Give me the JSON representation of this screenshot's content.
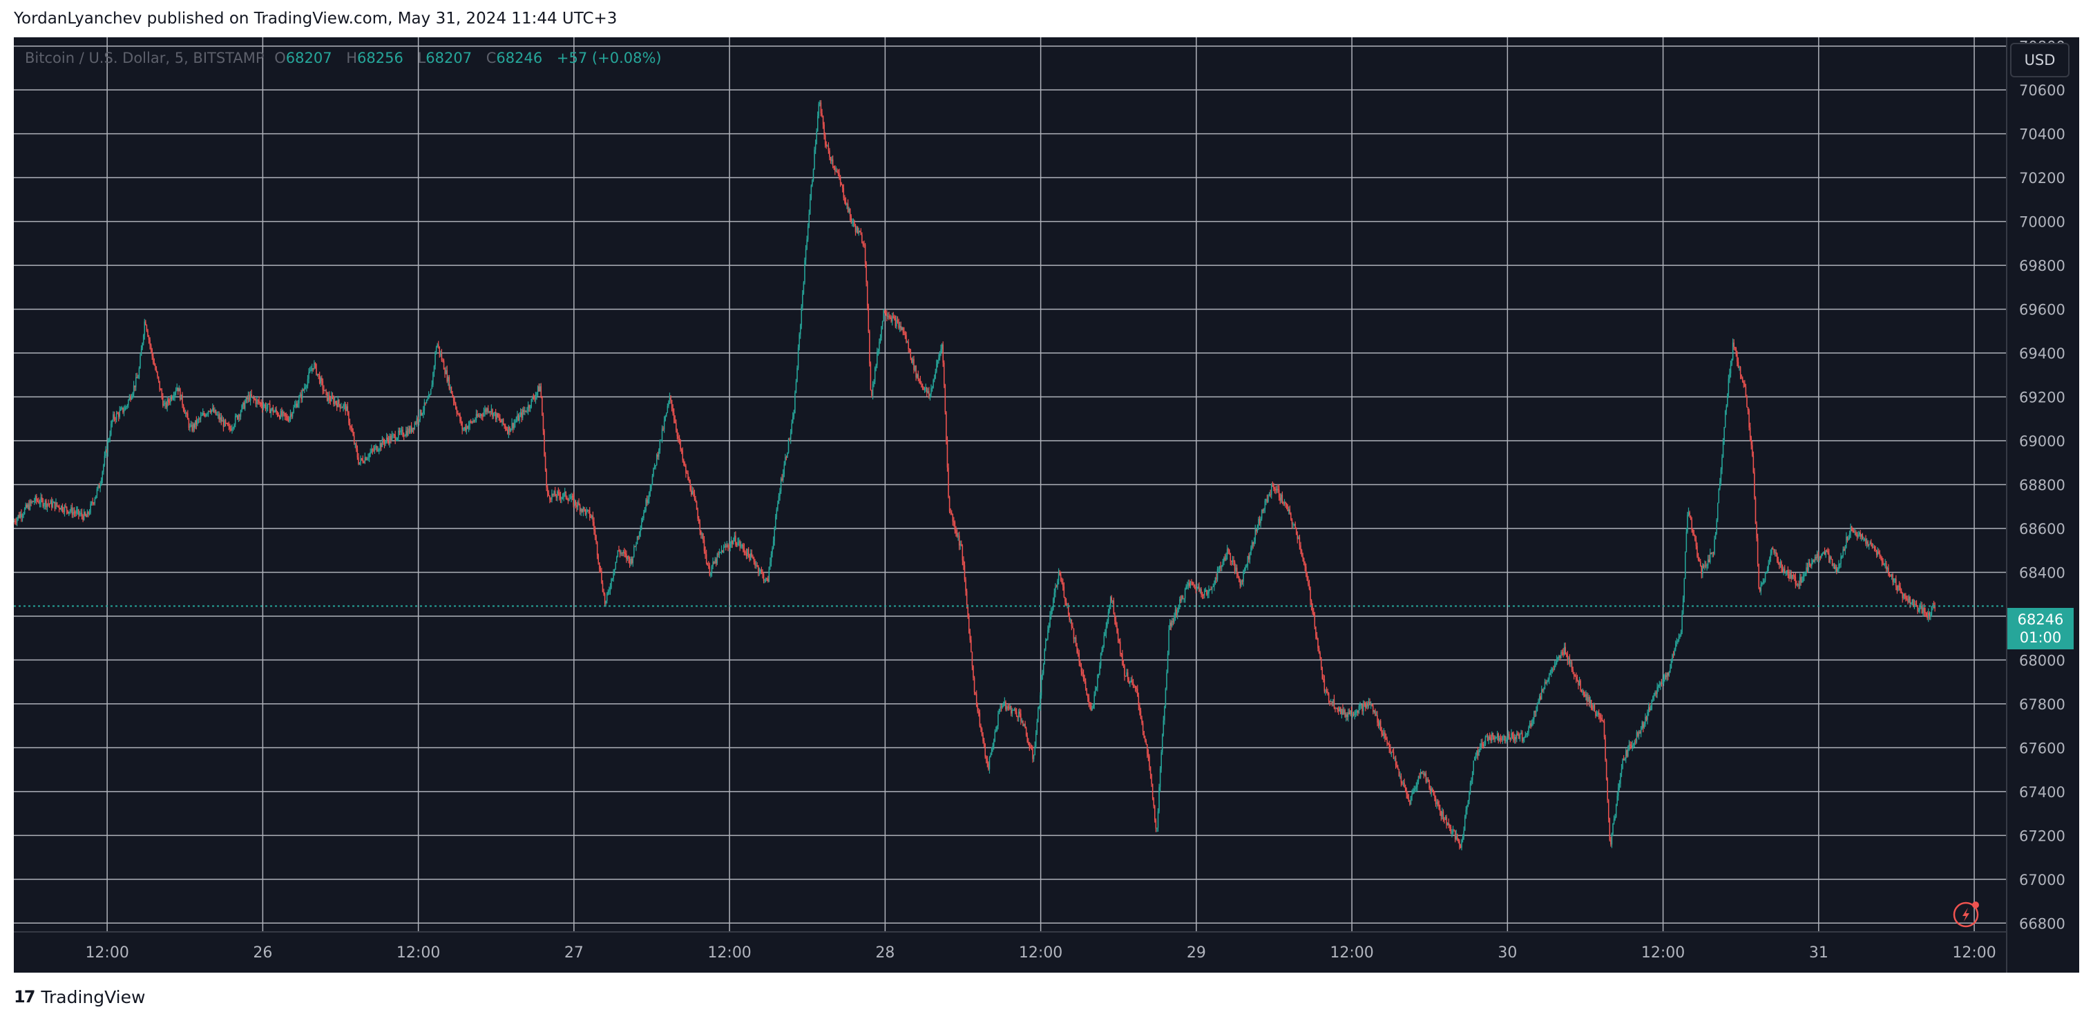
{
  "header": {
    "publisher": "YordanLyanchev published on TradingView.com, May 31, 2024 11:44 UTC+3"
  },
  "legend": {
    "symbol": "Bitcoin / U.S. Dollar, 5, BITSTAMP",
    "open_label": "O",
    "open": "68207",
    "high_label": "H",
    "high": "68256",
    "low_label": "L",
    "low": "68207",
    "close_label": "C",
    "close": "68246",
    "change": "+57 (+0.08%)"
  },
  "currency_button": "USD",
  "price_tag": {
    "price": "68246",
    "countdown": "01:00"
  },
  "footer": {
    "brand": "TradingView",
    "logo_mark": "17"
  },
  "colors": {
    "up": "#26a69a",
    "down": "#ef5350",
    "background": "#131722",
    "grid": "#b0b3bb"
  },
  "chart_data": {
    "type": "candlestick",
    "series_name": "",
    "interval": "5",
    "current_price": 68246,
    "ylim": [
      66760,
      70840
    ],
    "y_ticks": [
      66800,
      67000,
      67200,
      67400,
      67600,
      67800,
      68000,
      68200,
      68400,
      68600,
      68800,
      69000,
      69200,
      69400,
      69600,
      69800,
      70000,
      70200,
      70400,
      70600,
      70800
    ],
    "y_tick_labels": [
      "66800",
      "67000",
      "67200",
      "67400",
      "67600",
      "67800",
      "68000",
      "68200",
      "68400",
      "68600",
      "68800",
      "69000",
      "69200",
      "69400",
      "69600",
      "69800",
      "70000",
      "70200",
      "70400",
      "70600",
      "70800"
    ],
    "x_ticks": [
      "12:00",
      "26",
      "12:00",
      "27",
      "12:00",
      "28",
      "12:00",
      "29",
      "12:00",
      "30",
      "12:00",
      "31",
      "12:00"
    ],
    "x_tick_hours": [
      12,
      24,
      36,
      48,
      60,
      72,
      84,
      96,
      108,
      120,
      132,
      144,
      156
    ],
    "xlim_hours": [
      4.8,
      158.5
    ],
    "grid": true,
    "price_path": [
      [
        4.8,
        68630
      ],
      [
        6.5,
        68730
      ],
      [
        8.5,
        68700
      ],
      [
        10.5,
        68650
      ],
      [
        11.5,
        68800
      ],
      [
        12.5,
        69100
      ],
      [
        13.5,
        69150
      ],
      [
        14.5,
        69300
      ],
      [
        15.0,
        69560
      ],
      [
        15.5,
        69400
      ],
      [
        16.5,
        69150
      ],
      [
        17.5,
        69250
      ],
      [
        18.5,
        69050
      ],
      [
        20.0,
        69150
      ],
      [
        21.5,
        69050
      ],
      [
        23.0,
        69200
      ],
      [
        24.5,
        69150
      ],
      [
        26.0,
        69100
      ],
      [
        27.0,
        69200
      ],
      [
        28.0,
        69350
      ],
      [
        29.0,
        69200
      ],
      [
        30.5,
        69150
      ],
      [
        31.5,
        68900
      ],
      [
        33.5,
        69000
      ],
      [
        35.5,
        69050
      ],
      [
        37.0,
        69200
      ],
      [
        37.5,
        69450
      ],
      [
        38.5,
        69250
      ],
      [
        39.5,
        69050
      ],
      [
        41.5,
        69150
      ],
      [
        43.0,
        69050
      ],
      [
        44.5,
        69150
      ],
      [
        45.5,
        69250
      ],
      [
        46.0,
        68750
      ],
      [
        47.5,
        68750
      ],
      [
        49.5,
        68650
      ],
      [
        50.5,
        68250
      ],
      [
        51.5,
        68500
      ],
      [
        52.5,
        68450
      ],
      [
        54.0,
        68800
      ],
      [
        55.5,
        69200
      ],
      [
        56.5,
        68900
      ],
      [
        57.5,
        68700
      ],
      [
        58.5,
        68400
      ],
      [
        59.5,
        68500
      ],
      [
        60.5,
        68550
      ],
      [
        62.0,
        68450
      ],
      [
        63.0,
        68350
      ],
      [
        64.0,
        68800
      ],
      [
        65.0,
        69100
      ],
      [
        66.0,
        69900
      ],
      [
        67.0,
        70550
      ],
      [
        67.5,
        70350
      ],
      [
        68.5,
        70200
      ],
      [
        69.5,
        70000
      ],
      [
        70.5,
        69900
      ],
      [
        71.0,
        69200
      ],
      [
        72.0,
        69600
      ],
      [
        73.5,
        69500
      ],
      [
        74.5,
        69300
      ],
      [
        75.5,
        69200
      ],
      [
        76.5,
        69450
      ],
      [
        77.0,
        68700
      ],
      [
        78.0,
        68500
      ],
      [
        79.0,
        67850
      ],
      [
        80.0,
        67500
      ],
      [
        81.0,
        67800
      ],
      [
        82.5,
        67750
      ],
      [
        83.5,
        67550
      ],
      [
        84.5,
        68100
      ],
      [
        85.5,
        68400
      ],
      [
        86.5,
        68150
      ],
      [
        88.0,
        67750
      ],
      [
        89.5,
        68300
      ],
      [
        90.5,
        67950
      ],
      [
        91.5,
        67850
      ],
      [
        92.5,
        67500
      ],
      [
        93.0,
        67200
      ],
      [
        94.0,
        68150
      ],
      [
        95.5,
        68350
      ],
      [
        97.0,
        68300
      ],
      [
        98.5,
        68500
      ],
      [
        99.5,
        68350
      ],
      [
        101.0,
        68650
      ],
      [
        102.0,
        68800
      ],
      [
        103.0,
        68700
      ],
      [
        104.0,
        68550
      ],
      [
        105.0,
        68250
      ],
      [
        106.0,
        67850
      ],
      [
        107.5,
        67750
      ],
      [
        109.5,
        67800
      ],
      [
        111.0,
        67600
      ],
      [
        112.5,
        67350
      ],
      [
        113.5,
        67500
      ],
      [
        115.0,
        67300
      ],
      [
        116.5,
        67150
      ],
      [
        117.5,
        67550
      ],
      [
        118.5,
        67650
      ],
      [
        120.0,
        67650
      ],
      [
        121.5,
        67650
      ],
      [
        123.0,
        67900
      ],
      [
        124.5,
        68050
      ],
      [
        125.5,
        67900
      ],
      [
        126.5,
        67800
      ],
      [
        127.5,
        67700
      ],
      [
        128.0,
        67150
      ],
      [
        129.0,
        67550
      ],
      [
        130.5,
        67700
      ],
      [
        131.5,
        67850
      ],
      [
        132.5,
        67950
      ],
      [
        133.5,
        68150
      ],
      [
        134.0,
        68700
      ],
      [
        135.0,
        68400
      ],
      [
        136.0,
        68500
      ],
      [
        137.0,
        69200
      ],
      [
        137.5,
        69450
      ],
      [
        138.5,
        69200
      ],
      [
        139.0,
        68900
      ],
      [
        139.5,
        68300
      ],
      [
        140.5,
        68500
      ],
      [
        141.5,
        68400
      ],
      [
        142.5,
        68350
      ],
      [
        143.5,
        68450
      ],
      [
        144.5,
        68500
      ],
      [
        145.5,
        68400
      ],
      [
        146.5,
        68600
      ],
      [
        147.5,
        68550
      ],
      [
        148.5,
        68500
      ],
      [
        149.5,
        68400
      ],
      [
        150.5,
        68300
      ],
      [
        151.5,
        68250
      ],
      [
        152.5,
        68200
      ],
      [
        153.0,
        68246
      ]
    ]
  }
}
